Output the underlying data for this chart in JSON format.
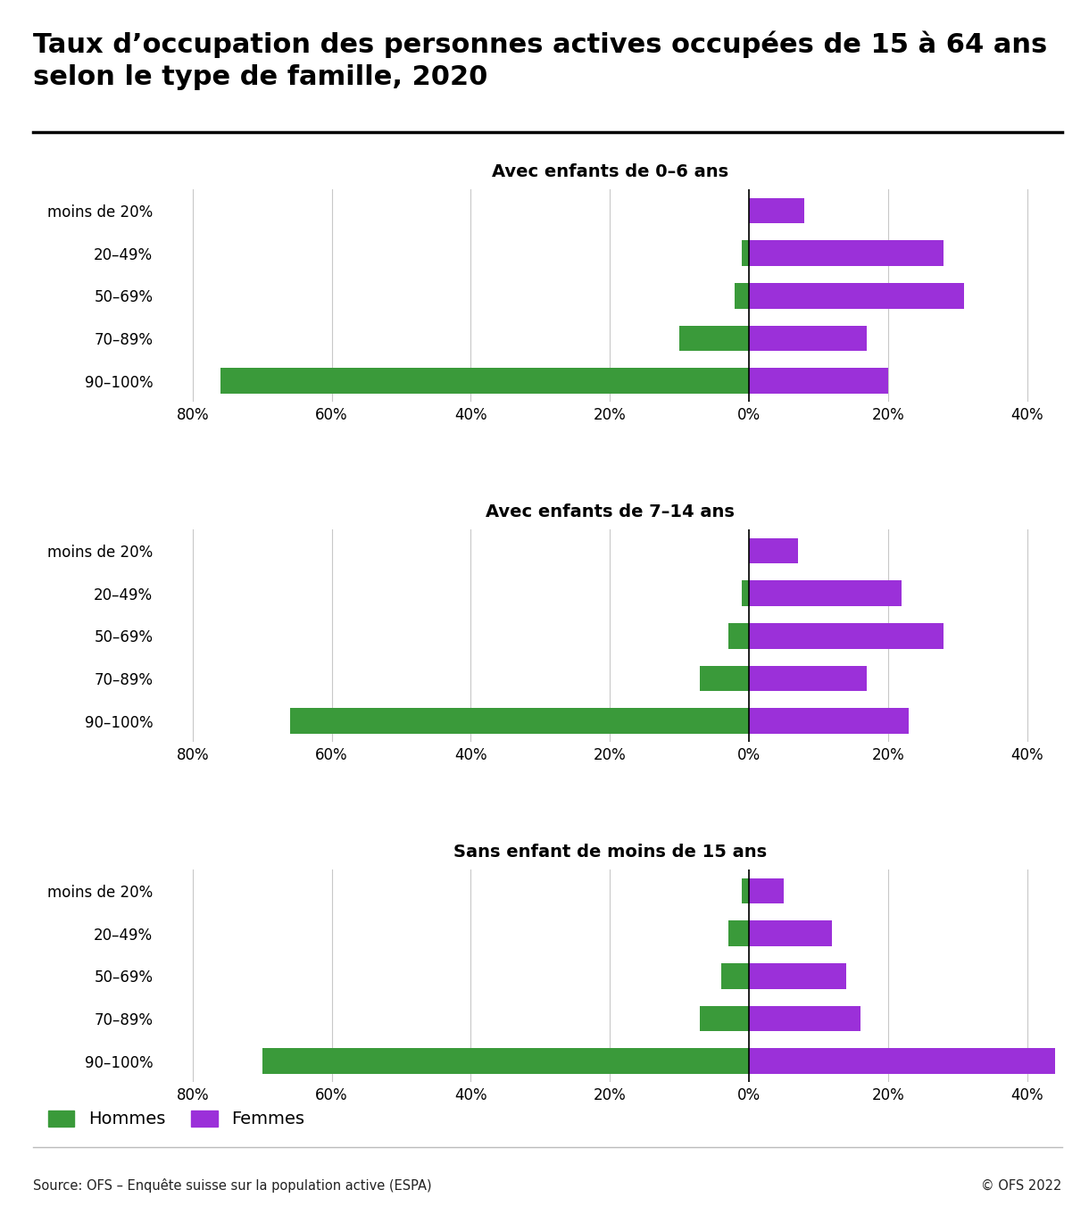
{
  "title_line1": "Taux d’occupation des personnes actives occupées de 15 à 64 ans",
  "title_line2": "selon le type de famille, 2020",
  "subtitles": [
    "Avec enfants de 0–6 ans",
    "Avec enfants de 7–14 ans",
    "Sans enfant de moins de 15 ans"
  ],
  "categories": [
    "moins de 20%",
    "20–49%",
    "50–69%",
    "70–89%",
    "90–100%"
  ],
  "color_hommes": "#3a9a3a",
  "color_femmes": "#9b30d9",
  "data": [
    {
      "hommes": [
        0,
        -1,
        -2,
        -10,
        -76
      ],
      "femmes": [
        8,
        28,
        31,
        17,
        20
      ]
    },
    {
      "hommes": [
        0,
        -1,
        -3,
        -7,
        -66
      ],
      "femmes": [
        7,
        22,
        28,
        17,
        23
      ]
    },
    {
      "hommes": [
        -1,
        -3,
        -4,
        -7,
        -70
      ],
      "femmes": [
        5,
        12,
        14,
        16,
        44
      ]
    }
  ],
  "xlim": [
    -85,
    45
  ],
  "xticks": [
    -80,
    -60,
    -40,
    -20,
    0,
    20,
    40
  ],
  "xticklabels": [
    "80%",
    "60%",
    "40%",
    "20%",
    "0%",
    "20%",
    "40%"
  ],
  "legend_hommes": "Hommes",
  "legend_femmes": "Femmes",
  "source": "Source: OFS – Enquête suisse sur la population active (ESPA)",
  "copyright": "© OFS 2022",
  "background_color": "#ffffff",
  "title_fontsize": 22,
  "subtitle_fontsize": 14,
  "tick_fontsize": 12,
  "bar_height": 0.6
}
